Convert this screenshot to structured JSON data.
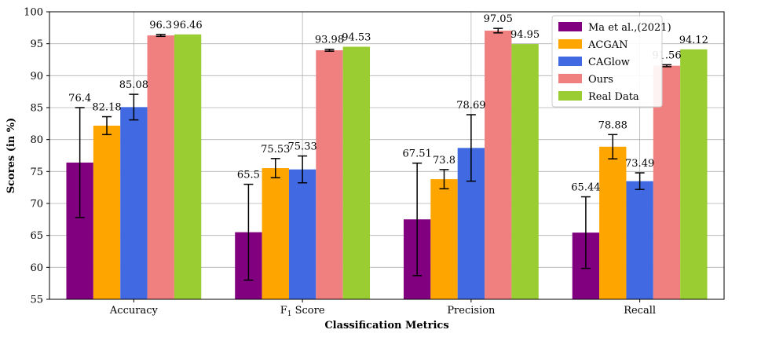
{
  "chart_data": {
    "type": "bar",
    "title": "",
    "xlabel": "Classification Metrics",
    "ylabel": "Scores (in %)",
    "ylim": [
      55,
      100
    ],
    "yticks": [
      55,
      60,
      65,
      70,
      75,
      80,
      85,
      90,
      95,
      100
    ],
    "categories": [
      "Accuracy",
      "F1 Score",
      "Precision",
      "Recall"
    ],
    "category_display": [
      {
        "main": "Accuracy",
        "sub": ""
      },
      {
        "main": "F",
        "sub": "1",
        "rest": " Score"
      },
      {
        "main": "Precision",
        "sub": ""
      },
      {
        "main": "Recall",
        "sub": ""
      }
    ],
    "grid": true,
    "legend_position": "top-right",
    "series": [
      {
        "name": "Ma et al.,(2021)",
        "color": "#800080",
        "values": [
          76.4,
          65.5,
          67.51,
          65.44
        ],
        "labels": [
          "76.4",
          "65.5",
          "67.51",
          "65.44"
        ],
        "errors": [
          8.6,
          7.5,
          8.8,
          5.6
        ]
      },
      {
        "name": "ACGAN",
        "color": "#FFA500",
        "values": [
          82.18,
          75.53,
          73.8,
          78.88
        ],
        "labels": [
          "82.18",
          "75.53",
          "73.8",
          "78.88"
        ],
        "errors": [
          1.4,
          1.5,
          1.5,
          1.9
        ]
      },
      {
        "name": "CAGlow",
        "color": "#4169E1",
        "values": [
          85.08,
          75.33,
          78.69,
          73.49
        ],
        "labels": [
          "85.08",
          "75.33",
          "78.69",
          "73.49"
        ],
        "errors": [
          2.0,
          2.1,
          5.2,
          1.3
        ]
      },
      {
        "name": "Ours",
        "color": "#F08080",
        "values": [
          96.3,
          93.98,
          97.05,
          91.56
        ],
        "labels": [
          "96.3",
          "93.98",
          "97.05",
          "91.56"
        ],
        "errors": [
          0.15,
          0.15,
          0.35,
          0.15
        ]
      },
      {
        "name": "Real Data",
        "color": "#9ACD32",
        "values": [
          96.46,
          94.53,
          94.95,
          94.12
        ],
        "labels": [
          "96.46",
          "94.53",
          "94.95",
          "94.12"
        ],
        "errors": [
          0,
          0,
          0,
          0
        ]
      }
    ]
  }
}
